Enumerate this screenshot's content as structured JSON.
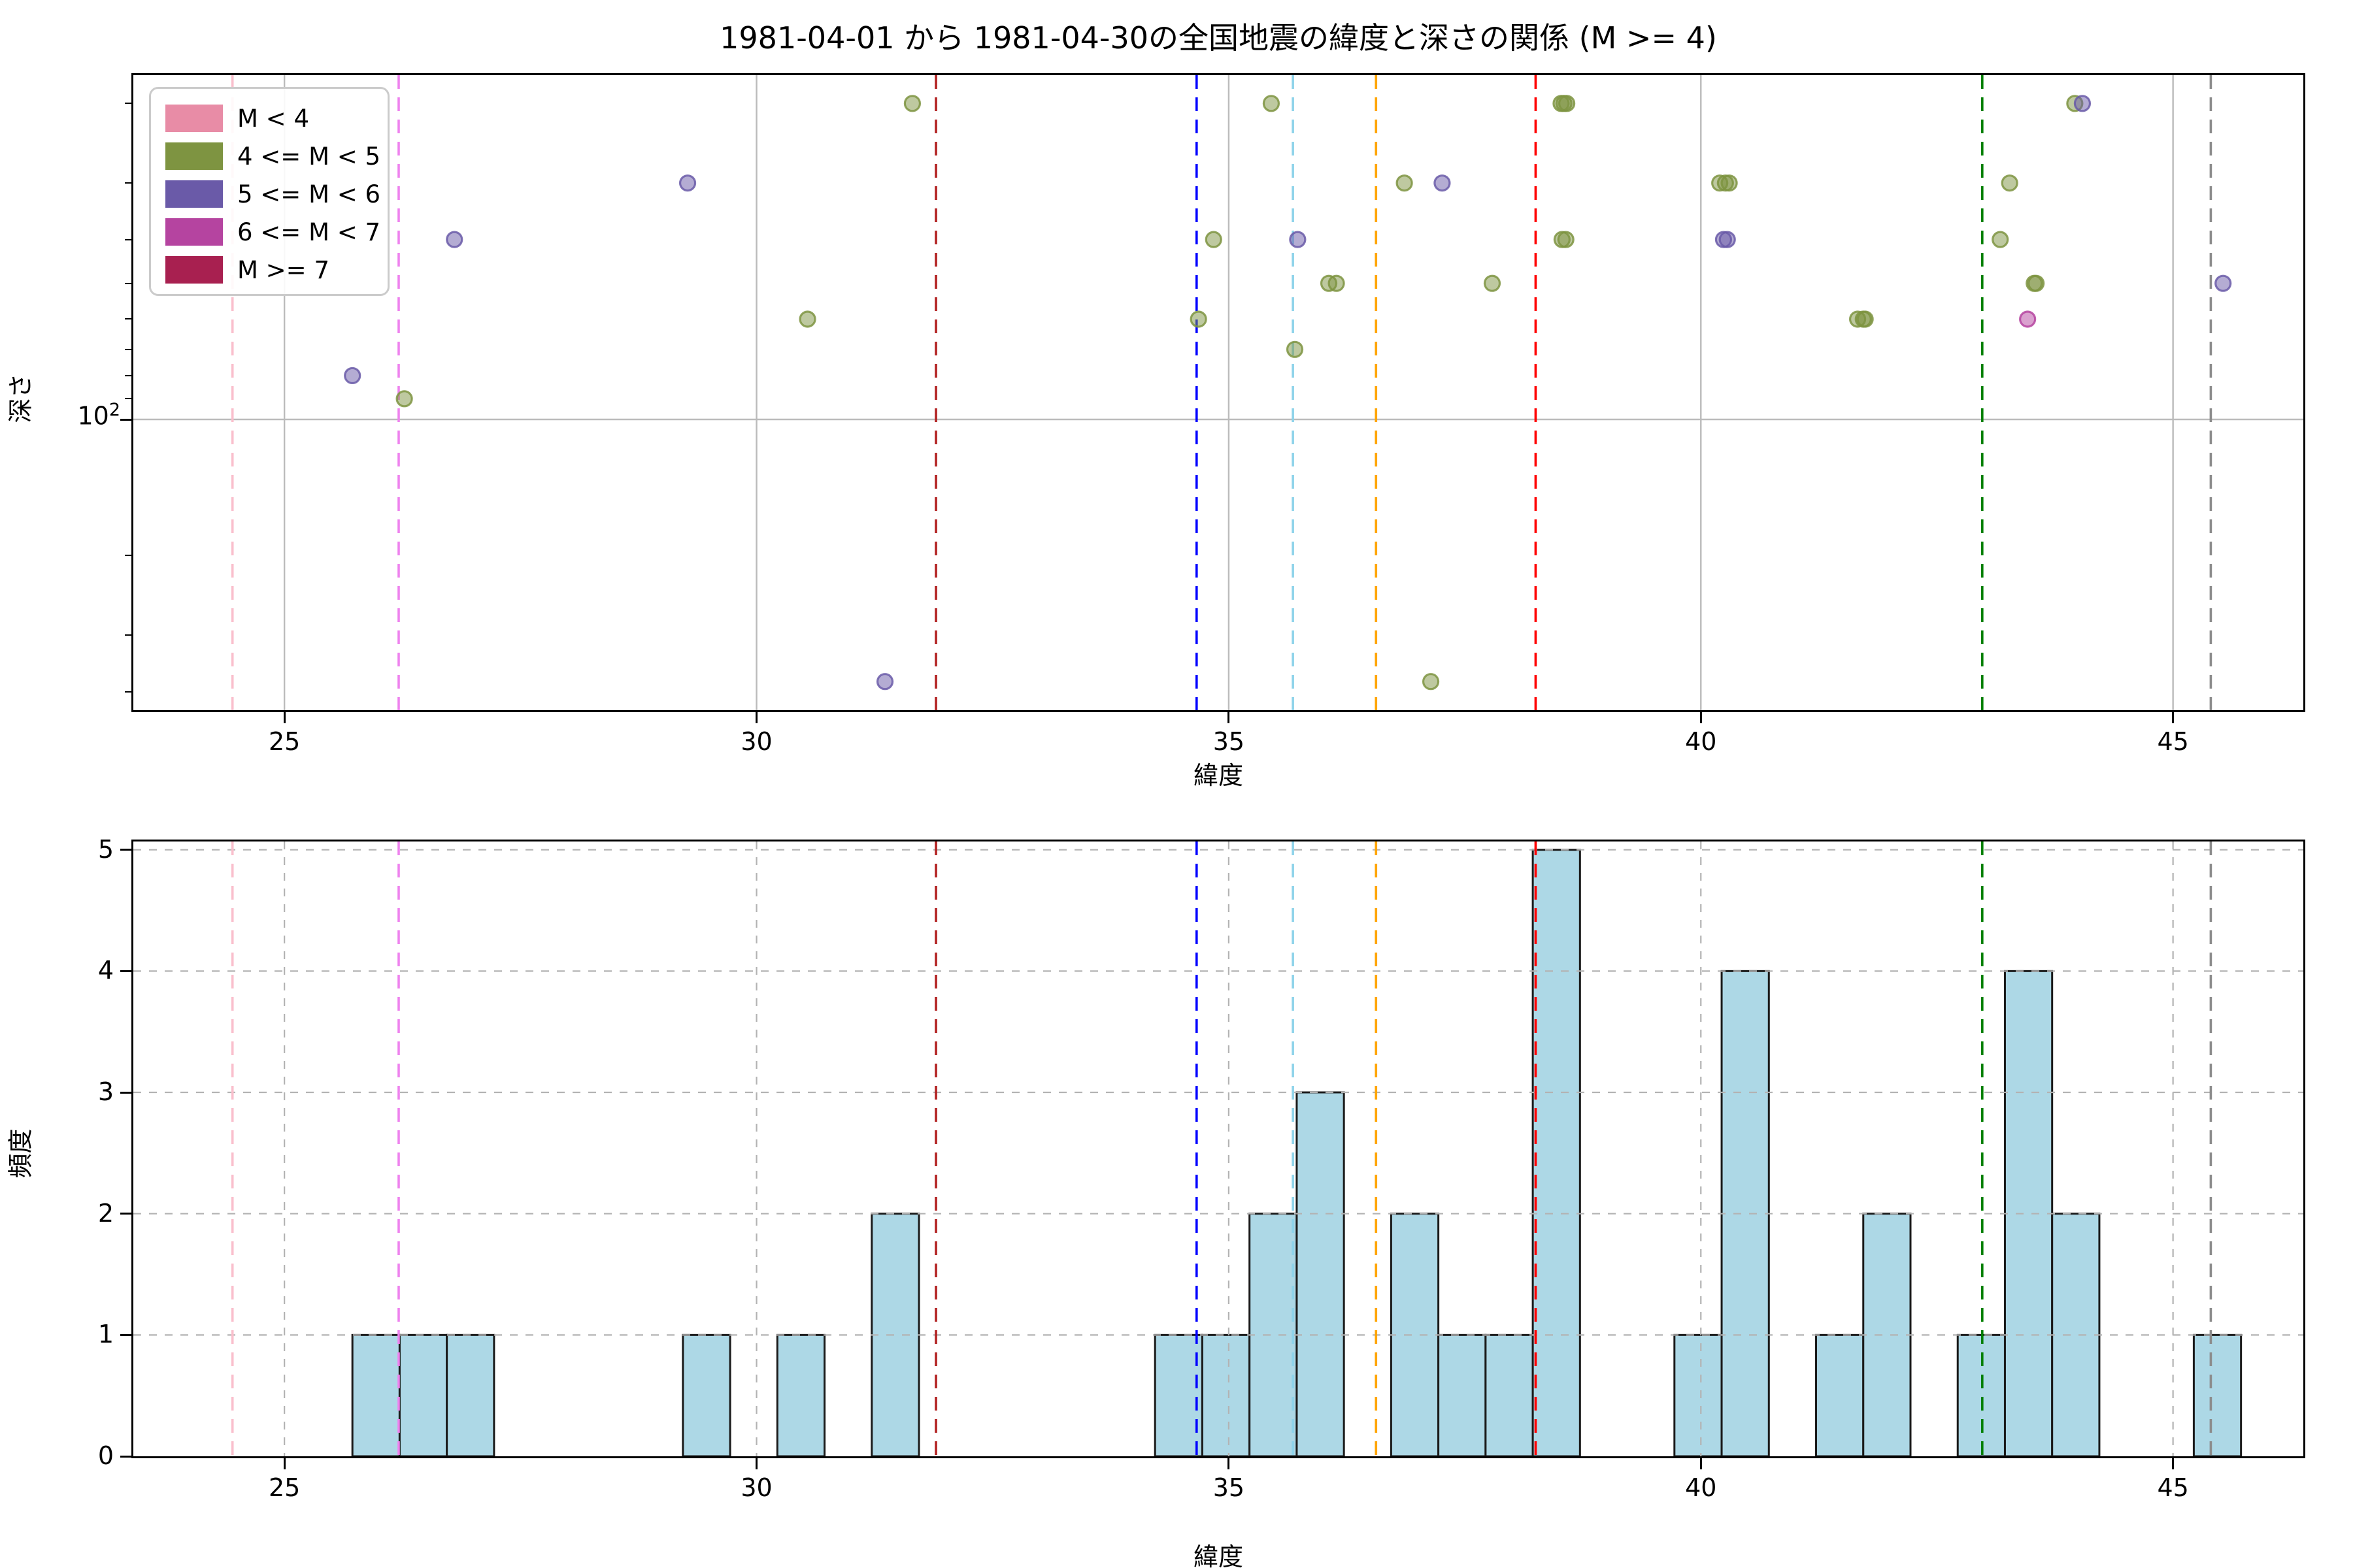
{
  "figure": {
    "title": "1981-04-01 から 1981-04-30の全国地震の緯度と深さの関係 (M >= 4)",
    "background_color": "#ffffff"
  },
  "legend": {
    "items": [
      {
        "label": "M < 4",
        "color": "#E88CA6"
      },
      {
        "label": "4 <= M < 5",
        "color": "#7E9441"
      },
      {
        "label": "5 <= M < 6",
        "color": "#6A5AA8"
      },
      {
        "label": "6 <= M < 7",
        "color": "#B544A0"
      },
      {
        "label": "M >= 7",
        "color": "#A82050"
      }
    ]
  },
  "reference_vlines": [
    {
      "lat": 24.45,
      "color": "#FABFCC"
    },
    {
      "lat": 26.21,
      "color": "#EE82EE"
    },
    {
      "lat": 31.9,
      "color": "#B22222"
    },
    {
      "lat": 34.66,
      "color": "#0000FF"
    },
    {
      "lat": 35.68,
      "color": "#8ED3EA"
    },
    {
      "lat": 36.56,
      "color": "#FFA500"
    },
    {
      "lat": 38.25,
      "color": "#FF0000"
    },
    {
      "lat": 42.98,
      "color": "#008000"
    },
    {
      "lat": 45.4,
      "color": "#8C8C8C"
    }
  ],
  "chart_data": [
    {
      "type": "scatter",
      "xlabel": "緯度",
      "ylabel": "深さ",
      "xlim": [
        23.4,
        46.38
      ],
      "x_ticks": [
        25,
        30,
        35,
        40,
        45
      ],
      "y_scale": "log",
      "y_axis_inverted": true,
      "ylim": [
        17.3,
        440
      ],
      "y_major_tick_value": 100,
      "y_major_tick_label": {
        "base": "10",
        "exp": "2"
      },
      "y_minor_ticks": [
        20,
        30,
        40,
        50,
        60,
        70,
        80,
        90,
        200,
        300,
        400
      ],
      "grid": "solid, at x ticks and y=100",
      "marker_alpha": 0.5,
      "points": [
        {
          "lat": 25.72,
          "depth": 80,
          "mag": "5 <= M < 6"
        },
        {
          "lat": 26.27,
          "depth": 90,
          "mag": "4 <= M < 5"
        },
        {
          "lat": 26.8,
          "depth": 40,
          "mag": "5 <= M < 6"
        },
        {
          "lat": 29.27,
          "depth": 30,
          "mag": "5 <= M < 6"
        },
        {
          "lat": 30.54,
          "depth": 60,
          "mag": "4 <= M < 5"
        },
        {
          "lat": 31.36,
          "depth": 380,
          "mag": "5 <= M < 6"
        },
        {
          "lat": 31.65,
          "depth": 20,
          "mag": "4 <= M < 5"
        },
        {
          "lat": 34.68,
          "depth": 60,
          "mag": "4 <= M < 5"
        },
        {
          "lat": 34.84,
          "depth": 40,
          "mag": "4 <= M < 5"
        },
        {
          "lat": 35.45,
          "depth": 20,
          "mag": "4 <= M < 5"
        },
        {
          "lat": 35.7,
          "depth": 70,
          "mag": "4 <= M < 5"
        },
        {
          "lat": 35.73,
          "depth": 40,
          "mag": "5 <= M < 6"
        },
        {
          "lat": 36.06,
          "depth": 50,
          "mag": "4 <= M < 5"
        },
        {
          "lat": 36.14,
          "depth": 50,
          "mag": "4 <= M < 5"
        },
        {
          "lat": 36.86,
          "depth": 30,
          "mag": "4 <= M < 5"
        },
        {
          "lat": 37.14,
          "depth": 380,
          "mag": "4 <= M < 5"
        },
        {
          "lat": 37.26,
          "depth": 30,
          "mag": "5 <= M < 6"
        },
        {
          "lat": 37.79,
          "depth": 50,
          "mag": "4 <= M < 5"
        },
        {
          "lat": 38.52,
          "depth": 20,
          "mag": "4 <= M < 5"
        },
        {
          "lat": 38.55,
          "depth": 20,
          "mag": "4 <= M < 5"
        },
        {
          "lat": 38.58,
          "depth": 20,
          "mag": "4 <= M < 5"
        },
        {
          "lat": 38.53,
          "depth": 40,
          "mag": "4 <= M < 5"
        },
        {
          "lat": 38.57,
          "depth": 40,
          "mag": "4 <= M < 5"
        },
        {
          "lat": 40.2,
          "depth": 30,
          "mag": "4 <= M < 5"
        },
        {
          "lat": 40.24,
          "depth": 40,
          "mag": "5 <= M < 6"
        },
        {
          "lat": 40.26,
          "depth": 30,
          "mag": "4 <= M < 5"
        },
        {
          "lat": 40.28,
          "depth": 40,
          "mag": "5 <= M < 6"
        },
        {
          "lat": 40.3,
          "depth": 30,
          "mag": "4 <= M < 5"
        },
        {
          "lat": 41.66,
          "depth": 60,
          "mag": "4 <= M < 5"
        },
        {
          "lat": 41.72,
          "depth": 60,
          "mag": "4 <= M < 5"
        },
        {
          "lat": 41.74,
          "depth": 60,
          "mag": "4 <= M < 5"
        },
        {
          "lat": 43.17,
          "depth": 40,
          "mag": "4 <= M < 5"
        },
        {
          "lat": 43.27,
          "depth": 30,
          "mag": "4 <= M < 5"
        },
        {
          "lat": 43.46,
          "depth": 60,
          "mag": "6 <= M < 7"
        },
        {
          "lat": 43.53,
          "depth": 50,
          "mag": "4 <= M < 5"
        },
        {
          "lat": 43.55,
          "depth": 50,
          "mag": "4 <= M < 5"
        },
        {
          "lat": 43.96,
          "depth": 20,
          "mag": "4 <= M < 5"
        },
        {
          "lat": 44.04,
          "depth": 20,
          "mag": "5 <= M < 6"
        },
        {
          "lat": 45.53,
          "depth": 50,
          "mag": "5 <= M < 6"
        }
      ]
    },
    {
      "type": "bar",
      "xlabel": "緯度",
      "ylabel": "頻度",
      "xlim": [
        23.4,
        46.38
      ],
      "x_ticks": [
        25,
        30,
        35,
        40,
        45
      ],
      "ylim": [
        0,
        5.07
      ],
      "y_ticks": [
        0,
        1,
        2,
        3,
        4,
        5
      ],
      "grid": "dashed, at x ticks and integer y",
      "bar_color": "#ADD8E6",
      "bar_edge_color": "#1a1a1a",
      "bin_width": 0.5,
      "bins": [
        {
          "left": 25.72,
          "count": 1
        },
        {
          "left": 26.22,
          "count": 1
        },
        {
          "left": 26.72,
          "count": 1
        },
        {
          "left": 29.22,
          "count": 1
        },
        {
          "left": 30.22,
          "count": 1
        },
        {
          "left": 31.22,
          "count": 2
        },
        {
          "left": 34.22,
          "count": 1
        },
        {
          "left": 34.72,
          "count": 1
        },
        {
          "left": 35.22,
          "count": 2
        },
        {
          "left": 35.72,
          "count": 3
        },
        {
          "left": 36.72,
          "count": 2
        },
        {
          "left": 37.22,
          "count": 1
        },
        {
          "left": 37.72,
          "count": 1
        },
        {
          "left": 38.22,
          "count": 5
        },
        {
          "left": 39.72,
          "count": 1
        },
        {
          "left": 40.22,
          "count": 4
        },
        {
          "left": 41.22,
          "count": 1
        },
        {
          "left": 41.72,
          "count": 2
        },
        {
          "left": 42.72,
          "count": 1
        },
        {
          "left": 43.22,
          "count": 4
        },
        {
          "left": 43.72,
          "count": 2
        },
        {
          "left": 45.22,
          "count": 1
        }
      ]
    }
  ]
}
